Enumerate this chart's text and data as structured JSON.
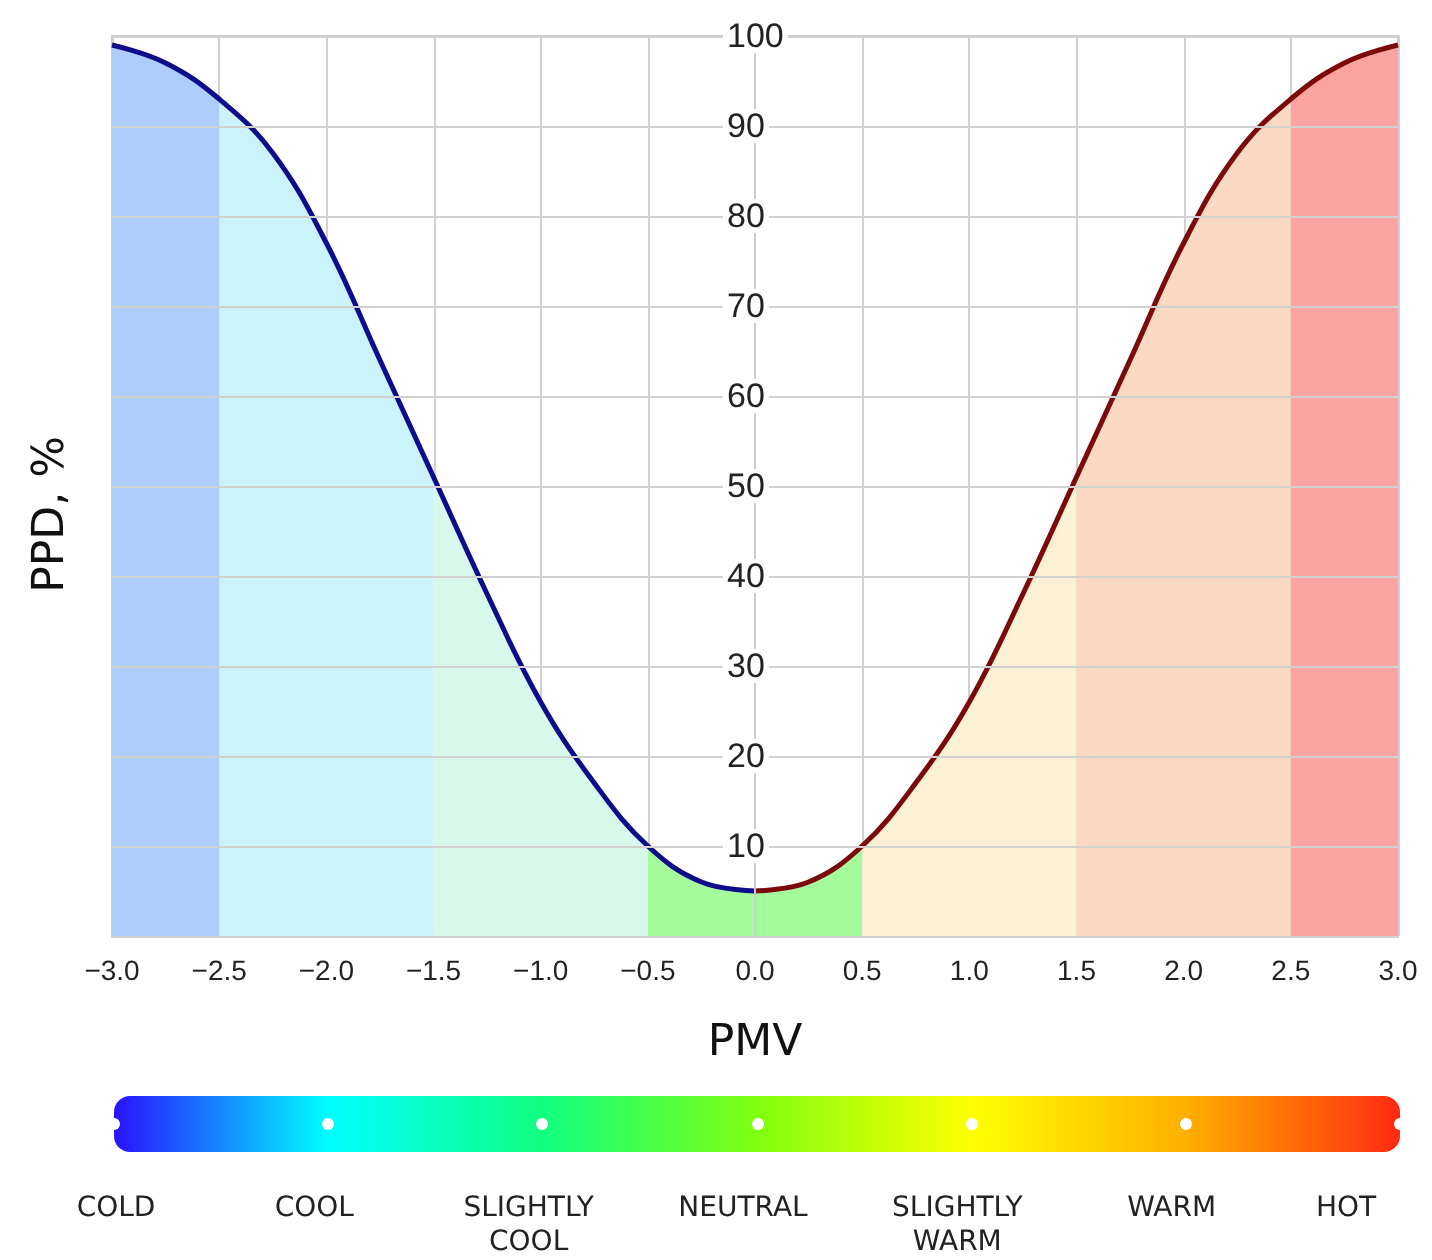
{
  "chart_data": {
    "type": "line",
    "xlabel": "PMV",
    "ylabel": "PPD, %",
    "xlim": [
      -3,
      3
    ],
    "xticks": [
      {
        "value": -3,
        "label": "−3.0"
      },
      {
        "value": -2.5,
        "label": "−2.5"
      },
      {
        "value": -2,
        "label": "−2.0"
      },
      {
        "value": -1.5,
        "label": "−1.5"
      },
      {
        "value": -1,
        "label": "−1.0"
      },
      {
        "value": -0.5,
        "label": "−0.5"
      },
      {
        "value": 0,
        "label": "0.0"
      },
      {
        "value": 0.5,
        "label": "0.5"
      },
      {
        "value": 1,
        "label": "1.0"
      },
      {
        "value": 1.5,
        "label": "1.5"
      },
      {
        "value": 2,
        "label": "2.0"
      },
      {
        "value": 2.5,
        "label": "2.5"
      },
      {
        "value": 3,
        "label": "3.0"
      }
    ],
    "ylim": [
      0,
      100
    ],
    "yticks": [
      {
        "value": 0,
        "label": null
      },
      10,
      20,
      30,
      40,
      50,
      60,
      70,
      80,
      90,
      100
    ],
    "grid": true,
    "marker": "none",
    "series": [
      {
        "type": "area",
        "color": "#aecdfa",
        "x": [
          -3,
          -2.75,
          -2.5
        ],
        "values": [
          99,
          97,
          93
        ]
      },
      {
        "type": "area",
        "color": "#ccf2fb",
        "x": [
          -2.5,
          -2.25,
          -2,
          -1.75,
          -1.5
        ],
        "values": [
          93,
          87,
          77,
          64,
          51
        ]
      },
      {
        "type": "area",
        "color": "#d9f8ec",
        "x": [
          -1.5,
          -1.25,
          -1,
          -0.75,
          -0.5
        ],
        "values": [
          51,
          38,
          26,
          17,
          10
        ]
      },
      {
        "type": "area",
        "color": "#a3fb9c",
        "x": [
          -0.5,
          -0.25,
          0,
          0.25,
          0.5
        ],
        "values": [
          10,
          6,
          5,
          6,
          10
        ]
      },
      {
        "type": "area",
        "color": "#fbf1d4",
        "x": [
          0.5,
          0.75,
          1,
          1.25,
          1.5
        ],
        "values": [
          10,
          17,
          26,
          38,
          51
        ]
      },
      {
        "type": "area",
        "color": "#f9d9c2",
        "x": [
          1.5,
          1.75,
          2,
          2.25,
          2.5
        ],
        "values": [
          51,
          64,
          77,
          87,
          93
        ]
      },
      {
        "type": "area",
        "color": "#fba3a1",
        "x": [
          2.5,
          2.75,
          3
        ],
        "values": [
          93,
          97,
          99
        ]
      },
      {
        "color": "#0c0c8c",
        "x": [
          -3,
          -2.75,
          -2.5,
          -2.25,
          -2,
          -1.75,
          -1.5,
          -1.25,
          -1,
          -0.75,
          -0.5,
          -0.25,
          0
        ],
        "values": [
          99,
          97,
          93,
          87,
          77,
          64,
          51,
          38,
          26,
          17,
          10,
          6,
          5
        ]
      },
      {
        "color": "#7d0a0a",
        "x": [
          0,
          0.25,
          0.5,
          0.75,
          1,
          1.25,
          1.5,
          1.75,
          2,
          2.25,
          2.5,
          2.75,
          3
        ],
        "values": [
          5,
          6,
          10,
          17,
          26,
          38,
          51,
          64,
          77,
          87,
          93,
          97,
          99
        ]
      }
    ],
    "annotations": [
      "COLD",
      "COOL",
      "SLIGHTLY COOL",
      "NEUTRAL",
      "SLIGHTLY WARM",
      "WARM",
      "HOT"
    ]
  }
}
